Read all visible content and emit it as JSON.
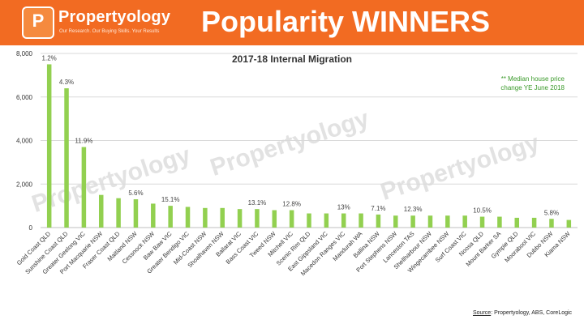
{
  "header": {
    "brand_name": "Propertyology",
    "tagline": "Our Research. Our Buying Skills. Your Results",
    "title": "Popularity WINNERS",
    "logo_glyph": "P"
  },
  "chart_data": {
    "type": "bar",
    "title": "2017-18 Internal Migration",
    "legend_note_line1": "** Median house price",
    "legend_note_line2": "change YE June 2018",
    "ylim": [
      0,
      8000
    ],
    "yticks": [
      0,
      2000,
      4000,
      6000,
      8000
    ],
    "ytick_labels": [
      "0",
      "2,000",
      "4,000",
      "6,000",
      "8,000"
    ],
    "grid": true,
    "bar_color": "#92d050",
    "categories": [
      "Gold Coast QLD",
      "Sunshine Coast QLD",
      "Greater Geelong VIC",
      "Port Macquarie NSW",
      "Fraser Coast QLD",
      "Maitland NSW",
      "Cessnock NSW",
      "Baw Baw VIC",
      "Greater Bendigo VIC",
      "Mid-Coast NSW",
      "Shoalhaven NSW",
      "Ballarat VIC",
      "Bass Coast VIC",
      "Tweed NSW",
      "Mitchell VIC",
      "Scenic Rim QLD",
      "East Gippsland VIC",
      "Macedon Ranges VIC",
      "Mandurah WA",
      "Ballina NSW",
      "Port Stephens NSW",
      "Lanceston TAS",
      "Shellharbour NSW",
      "Wingecarribee NSW",
      "Surf Coast VIC",
      "Noosa QLD",
      "Mount Barker SA",
      "Gympie QLD",
      "Moorabool VIC",
      "Dubbo NSW",
      "Kiama NSW"
    ],
    "values": [
      7500,
      6400,
      3700,
      1500,
      1350,
      1300,
      1100,
      1000,
      950,
      900,
      900,
      850,
      850,
      800,
      800,
      650,
      650,
      650,
      650,
      600,
      550,
      550,
      550,
      550,
      550,
      500,
      500,
      450,
      450,
      400,
      350
    ],
    "annotations": [
      "1.2%",
      "4.3%",
      "11.9%",
      "",
      "",
      "5.6%",
      "",
      "15.1%",
      "",
      "",
      "",
      "",
      "13.1%",
      "",
      "12.8%",
      "",
      "",
      "13%",
      "",
      "7.1%",
      "",
      "12.3%",
      "",
      "",
      "",
      "10.5%",
      "",
      "",
      "",
      "5.8%",
      ""
    ]
  },
  "watermark": "Propertyology",
  "source": {
    "label": "Source",
    "text": ": Propertyology, ABS, CoreLogic"
  }
}
